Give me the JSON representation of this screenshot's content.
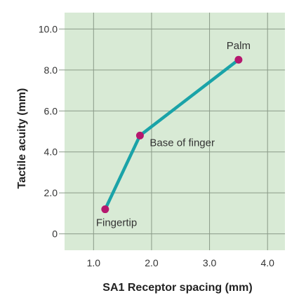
{
  "chart_data": {
    "type": "line",
    "xlabel": "SA1 Receptor spacing (mm)",
    "ylabel": "Tactile acuity (mm)",
    "xlim": [
      0.5,
      4.3
    ],
    "ylim": [
      -0.8,
      10.8
    ],
    "x_ticks": [
      1.0,
      2.0,
      3.0,
      4.0
    ],
    "x_tick_labels": [
      "1.0",
      "2.0",
      "3.0",
      "4.0"
    ],
    "y_ticks": [
      0,
      2.0,
      4.0,
      6.0,
      8.0,
      10.0
    ],
    "y_tick_labels": [
      "0",
      "2.0",
      "4.0",
      "6.0",
      "8.0",
      "10.0"
    ],
    "grid": true,
    "plot_background": "#d8ead5",
    "grid_color": "#8a9a88",
    "line_color": "#1aa3a8",
    "marker_color": "#b5176e",
    "series": [
      {
        "points": [
          {
            "x": 1.2,
            "y": 1.2,
            "label": "Fingertip"
          },
          {
            "x": 1.8,
            "y": 4.8,
            "label": "Base of finger"
          },
          {
            "x": 3.5,
            "y": 8.5,
            "label": "Palm"
          }
        ]
      }
    ]
  }
}
